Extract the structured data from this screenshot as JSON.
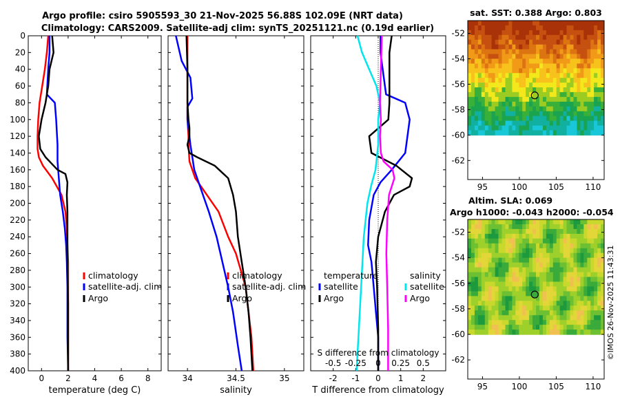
{
  "title_line1": "Argo profile: csiro 5905593_30 21-Nov-2025 56.88S 102.09E (NRT data)",
  "title_line2": "Climatology: CARS2009. Satellite-adj clim: synTS_20251121.nc (0.19d earlier)",
  "watermark": "©IMOS 26-Nov-2025 11:43:31",
  "colors": {
    "red": "#ff0000",
    "blue": "#0000ff",
    "black": "#000000",
    "cyan": "#00e5ee",
    "magenta": "#ff00ff"
  },
  "chart_data": [
    {
      "type": "line",
      "xlabel": "temperature (deg C)",
      "ylabel": "",
      "xlim": [
        -1,
        9
      ],
      "ylim": [
        400,
        0
      ],
      "xticks": [
        0,
        2,
        4,
        6,
        8
      ],
      "xtick_labels": [
        "0",
        "2",
        "4",
        "6",
        "8"
      ],
      "yticks": [
        0,
        20,
        40,
        60,
        80,
        100,
        120,
        140,
        160,
        180,
        200,
        220,
        240,
        260,
        280,
        300,
        320,
        340,
        360,
        380,
        400
      ],
      "ytick_labels": [
        "0",
        "20",
        "40",
        "60",
        "80",
        "100",
        "120",
        "140",
        "160",
        "180",
        "200",
        "220",
        "240",
        "260",
        "280",
        "300",
        "320",
        "340",
        "360",
        "380",
        "400"
      ],
      "legend": [
        "climatology",
        "satellite-adj. clim",
        "Argo"
      ],
      "legend_position": "lower-right",
      "series": [
        {
          "name": "climatology",
          "color": "red",
          "x": [
            0.5,
            0.4,
            0.25,
            0.05,
            -0.15,
            -0.25,
            -0.3,
            -0.3,
            -0.2,
            0.1,
            0.8,
            1.5,
            1.8,
            1.9,
            1.95,
            2.0,
            2.0,
            2.0,
            2.0,
            2.0,
            2.0
          ],
          "y": [
            0,
            20,
            40,
            60,
            80,
            100,
            120,
            135,
            145,
            155,
            170,
            190,
            210,
            230,
            250,
            270,
            300,
            330,
            360,
            390,
            400
          ]
        },
        {
          "name": "satellite-adj. clim",
          "color": "blue",
          "x": [
            0.6,
            0.6,
            0.5,
            0.4,
            1.0,
            1.1,
            1.2,
            1.2,
            1.3,
            1.4,
            1.6,
            1.75,
            1.85,
            1.9,
            1.95,
            1.95,
            1.95,
            2.0
          ],
          "y": [
            0,
            20,
            40,
            70,
            80,
            100,
            130,
            150,
            170,
            190,
            210,
            230,
            250,
            270,
            300,
            330,
            360,
            400
          ]
        },
        {
          "name": "Argo",
          "color": "black",
          "x": [
            0.8,
            0.9,
            0.6,
            0.5,
            0.3,
            0.0,
            -0.2,
            -0.1,
            0.3,
            1.2,
            1.8,
            1.95,
            1.9,
            1.95,
            1.95,
            1.95,
            2.0,
            2.0,
            2.0
          ],
          "y": [
            0,
            20,
            40,
            60,
            80,
            100,
            120,
            135,
            145,
            160,
            165,
            175,
            190,
            210,
            240,
            280,
            320,
            360,
            400
          ]
        }
      ]
    },
    {
      "type": "line",
      "xlabel": "salinity",
      "ylabel": "",
      "xlim": [
        33.8,
        35.2
      ],
      "ylim": [
        400,
        0
      ],
      "xticks": [
        34,
        34.5,
        35
      ],
      "xtick_labels": [
        "34",
        "34.5",
        "35"
      ],
      "legend": [
        "climatology",
        "satellite-adj. clim",
        "Argo"
      ],
      "legend_position": "lower-right",
      "series": [
        {
          "name": "climatology",
          "color": "red",
          "x": [
            34.0,
            34.0,
            34.0,
            34.0,
            34.01,
            34.01,
            34.02,
            34.08,
            34.2,
            34.32,
            34.42,
            34.5,
            34.55,
            34.6,
            34.63,
            34.66,
            34.68
          ],
          "y": [
            0,
            40,
            80,
            100,
            120,
            130,
            150,
            170,
            190,
            210,
            240,
            260,
            280,
            300,
            330,
            360,
            400
          ]
        },
        {
          "name": "satellite-adj. clim",
          "color": "blue",
          "x": [
            33.88,
            33.94,
            34.03,
            34.05,
            34.0,
            34.0,
            34.03,
            34.07,
            34.13,
            34.22,
            34.3,
            34.36,
            34.42,
            34.47,
            34.52,
            34.56
          ],
          "y": [
            0,
            30,
            50,
            75,
            85,
            100,
            130,
            160,
            180,
            210,
            240,
            270,
            300,
            330,
            370,
            400
          ]
        },
        {
          "name": "Argo",
          "color": "black",
          "x": [
            33.99,
            34.0,
            34.0,
            34.01,
            34.02,
            34.02,
            34.0,
            34.02,
            34.1,
            34.28,
            34.42,
            34.47,
            34.5,
            34.52,
            34.56,
            34.6,
            34.63,
            34.65,
            34.67
          ],
          "y": [
            0,
            40,
            80,
            100,
            110,
            120,
            130,
            140,
            145,
            155,
            170,
            190,
            210,
            240,
            270,
            300,
            330,
            360,
            400
          ]
        }
      ]
    },
    {
      "type": "line",
      "xlabel": "T difference from climatology",
      "xlabel_top": "S difference from climatology",
      "xlim": [
        -3,
        3
      ],
      "ylim": [
        400,
        0
      ],
      "xticks": [
        -2,
        -1,
        0,
        1,
        2
      ],
      "xtick_labels": [
        "-2",
        "-1",
        "0",
        "1",
        "2"
      ],
      "s_xticks": [
        -0.5,
        -0.25,
        0,
        0.25,
        0.5
      ],
      "s_xtick_labels": [
        "-0.5",
        "-0.25",
        "0",
        "0.25",
        "0.5"
      ],
      "legend_left_title": "temperature",
      "legend_right_title": "salinity",
      "legend_left": [
        "satellite",
        "Argo"
      ],
      "legend_right": [
        "satellite",
        "Argo"
      ],
      "legend_position": "lower",
      "series": [
        {
          "name": "T satellite",
          "color": "blue",
          "x": [
            0.1,
            0.1,
            0.2,
            0.35,
            1.2,
            1.4,
            1.2,
            0.6,
            0.1,
            -0.2,
            -0.4,
            -0.45,
            -0.3,
            -0.2,
            -0.1,
            0.0,
            0.0,
            0.0
          ],
          "y": [
            0,
            20,
            40,
            70,
            80,
            100,
            140,
            160,
            175,
            190,
            220,
            250,
            270,
            300,
            330,
            360,
            380,
            400
          ]
        },
        {
          "name": "T Argo",
          "color": "black",
          "x": [
            0.6,
            0.5,
            0.5,
            0.5,
            0.5,
            0.45,
            -0.4,
            -0.3,
            0.8,
            1.5,
            1.4,
            0.7,
            0.3,
            0.0,
            -0.1,
            -0.05,
            0.0,
            0.0
          ],
          "y": [
            0,
            20,
            40,
            60,
            80,
            100,
            120,
            140,
            155,
            170,
            180,
            190,
            210,
            240,
            270,
            300,
            350,
            400
          ]
        },
        {
          "name": "S satellite",
          "color": "cyan",
          "x": [
            -0.23,
            -0.18,
            -0.1,
            -0.02,
            0.02,
            0.0,
            0.0,
            -0.03,
            -0.08,
            -0.12,
            -0.16,
            -0.18,
            -0.2,
            -0.22,
            -0.24
          ],
          "y": [
            0,
            20,
            40,
            60,
            80,
            100,
            130,
            160,
            180,
            200,
            240,
            280,
            320,
            360,
            400
          ]
        },
        {
          "name": "S Argo",
          "color": "magenta",
          "x": [
            0.04,
            0.03,
            0.02,
            0.03,
            0.02,
            0.03,
            0.06,
            0.16,
            0.18,
            0.12,
            0.1,
            0.09,
            0.1,
            0.11,
            0.11
          ],
          "y": [
            0,
            40,
            80,
            100,
            120,
            140,
            150,
            160,
            170,
            190,
            220,
            260,
            300,
            350,
            400
          ]
        }
      ]
    },
    {
      "type": "heatmap",
      "title": "sat. SST: 0.388 Argo: 0.803",
      "xlim": [
        93,
        111.5
      ],
      "ylim": [
        -63.5,
        -51
      ],
      "xticks": [
        95,
        100,
        105,
        110
      ],
      "xtick_labels": [
        "95",
        "100",
        "105",
        "110"
      ],
      "yticks": [
        -52,
        -54,
        -56,
        -58,
        -60,
        -62
      ],
      "ytick_labels": [
        "-52",
        "-54",
        "-56",
        "-58",
        "-60",
        "-62"
      ],
      "data_lat_range": [
        -60,
        -51
      ],
      "marker": {
        "lon": 102.09,
        "lat": -56.88
      }
    },
    {
      "type": "heatmap",
      "title_line1": "Altim. SLA: 0.069",
      "title_line2": "Argo h1000: -0.043 h2000: -0.054",
      "xlim": [
        93,
        111.5
      ],
      "ylim": [
        -63.5,
        -51
      ],
      "xticks": [
        95,
        100,
        105,
        110
      ],
      "xtick_labels": [
        "95",
        "100",
        "105",
        "110"
      ],
      "yticks": [
        -52,
        -54,
        -56,
        -58,
        -60,
        -62
      ],
      "ytick_labels": [
        "-52",
        "-54",
        "-56",
        "-58",
        "-60",
        "-62"
      ],
      "data_lat_range": [
        -60,
        -51
      ],
      "marker": {
        "lon": 102.09,
        "lat": -56.88
      }
    }
  ]
}
